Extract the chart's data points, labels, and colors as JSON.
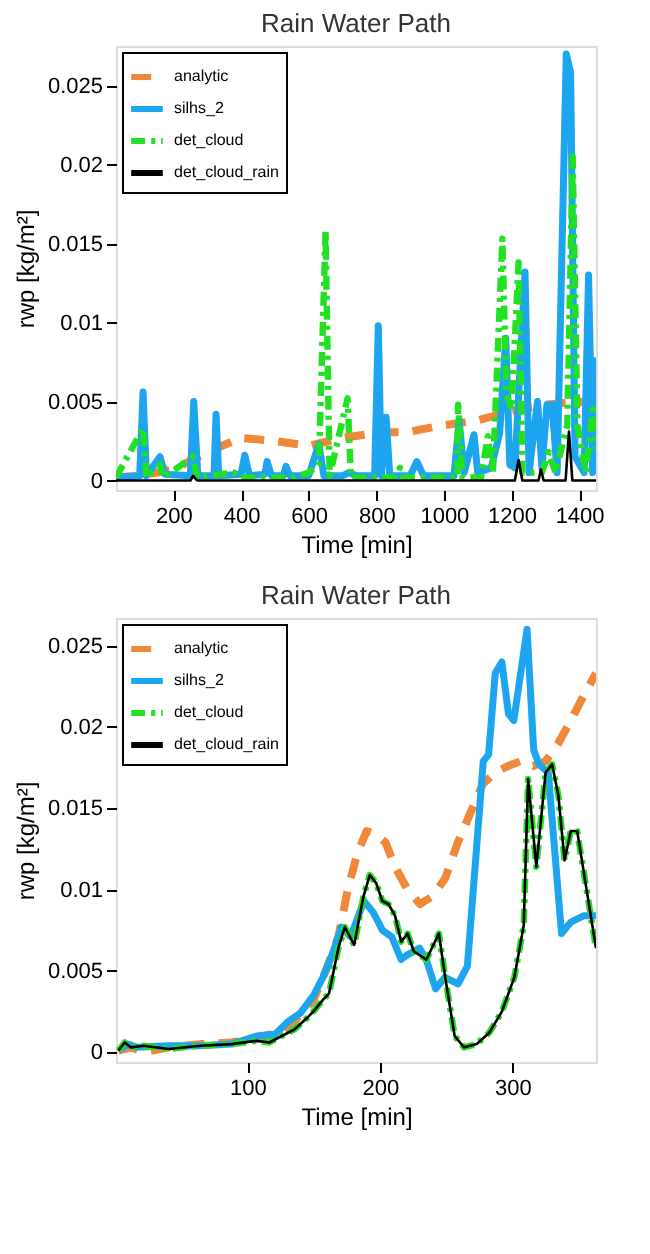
{
  "chart_data": [
    {
      "type": "line",
      "title": "Rain Water Path",
      "xlabel": "Time [min]",
      "ylabel": "rwp [kg/m²]",
      "xlim": [
        30,
        1450
      ],
      "ylim": [
        -0.0006,
        0.0275
      ],
      "xticks": [
        200,
        400,
        600,
        800,
        1000,
        1200,
        1400
      ],
      "yticks": [
        0,
        0.005,
        0.01,
        0.015,
        0.02,
        0.025
      ],
      "grid": false,
      "legend": "top left",
      "series": [
        {
          "name": "analytic",
          "color": "#f0883a",
          "line_style": "dashed",
          "x": [
            30,
            100,
            200,
            300,
            400,
            500,
            600,
            700,
            800,
            900,
            1000,
            1100,
            1200,
            1300,
            1400,
            1450
          ],
          "values": [
            0.0002,
            0.0003,
            0.0007,
            0.0018,
            0.0027,
            0.0025,
            0.0022,
            0.0027,
            0.003,
            0.0031,
            0.0035,
            0.0038,
            0.0044,
            0.0048,
            0.005,
            0.0048
          ]
        },
        {
          "name": "silhs_2",
          "color": "#1ea5ef",
          "line_style": "solid",
          "x": [
            30,
            100,
            110,
            120,
            160,
            175,
            250,
            260,
            272,
            320,
            326,
            334,
            400,
            411,
            425,
            470,
            477,
            490,
            525,
            533,
            545,
            600,
            630,
            645,
            700,
            720,
            740,
            795,
            806,
            815,
            829,
            840,
            900,
            920,
            940,
            1030,
            1045,
            1060,
            1089,
            1100,
            1140,
            1165,
            1183,
            1195,
            1210,
            1240,
            1252,
            1277,
            1290,
            1305,
            1320,
            1335,
            1362,
            1375,
            1388,
            1415,
            1428,
            1440,
            1450
          ],
          "values": [
            0.0002,
            0.0003,
            0.0056,
            0.0003,
            0.0015,
            0.0004,
            0.0003,
            0.005,
            0.0003,
            0.0003,
            0.0042,
            0.0003,
            0.0004,
            0.0016,
            0.0003,
            0.0004,
            0.0012,
            0.0003,
            0.0003,
            0.0009,
            0.0003,
            0.0003,
            0.0023,
            0.0003,
            0.0003,
            0.0005,
            0.0003,
            0.0003,
            0.0098,
            0.0003,
            0.004,
            0.0003,
            0.0003,
            0.0012,
            0.0003,
            0.0003,
            0.0038,
            0.0005,
            0.0029,
            0.0005,
            0.0008,
            0.003,
            0.009,
            0.001,
            0.0008,
            0.0132,
            0.0005,
            0.005,
            0.0008,
            0.0048,
            0.0048,
            0.0005,
            0.027,
            0.0258,
            0.0015,
            0.0005,
            0.013,
            0.0005,
            0.0078
          ]
        },
        {
          "name": "det_cloud",
          "color": "#22e022",
          "line_style": "dashed",
          "x": [
            30,
            110,
            120,
            160,
            170,
            258,
            270,
            380,
            395,
            560,
            600,
            630,
            650,
            662,
            715,
            725,
            850,
            870,
            880,
            1040,
            1042,
            1055,
            1110,
            1130,
            1145,
            1173,
            1185,
            1200,
            1221,
            1232,
            1290,
            1310,
            1330,
            1365,
            1381,
            1395,
            1420,
            1440,
            1450
          ],
          "values": [
            0.0002,
            0.0033,
            0.0002,
            0.001,
            0.0002,
            0.0015,
            0.0002,
            0.0005,
            0.0002,
            0.0002,
            0.0005,
            0.001,
            0.0158,
            0.0003,
            0.0052,
            0.0002,
            0.0002,
            0.0008,
            0.0002,
            0.0002,
            0.0048,
            0.0002,
            0.0002,
            0.0028,
            0.0005,
            0.0153,
            0.0055,
            0.0045,
            0.0138,
            0.0005,
            0.0005,
            0.0018,
            0.0005,
            0.0035,
            0.0205,
            0.0035,
            0.0005,
            0.0045,
            0.002
          ]
        },
        {
          "name": "det_cloud_rain",
          "color": "#000000",
          "line_style": "solid",
          "x": [
            30,
            250,
            258,
            270,
            1210,
            1221,
            1232,
            1280,
            1287,
            1295,
            1360,
            1370,
            1380,
            1450
          ],
          "values": [
            0,
            0,
            0.0003,
            0,
            0,
            0.0013,
            0,
            0,
            0.0007,
            0,
            0,
            0.0031,
            0,
            0
          ]
        }
      ]
    },
    {
      "type": "line",
      "title": "Rain Water Path",
      "xlabel": "Time [min]",
      "ylabel": "rwp [kg/m²]",
      "xlim": [
        1,
        363
      ],
      "ylim": [
        -0.0006,
        0.0267
      ],
      "xticks": [
        100,
        200,
        300
      ],
      "yticks": [
        0,
        0.005,
        0.01,
        0.015,
        0.02,
        0.025
      ],
      "grid": false,
      "legend": "top left",
      "series": [
        {
          "name": "analytic",
          "color": "#f0883a",
          "line_style": "dashed",
          "x": [
            2.8,
            12.3,
            21.8,
            40.8,
            64.5,
            88,
            111.8,
            126,
            135.5,
            149.8,
            159.2,
            168.7,
            175.8,
            182.9,
            190,
            197.2,
            204.3,
            211.4,
            220.9,
            230.3,
            239.8,
            249.3,
            258.8,
            268.2,
            277.7,
            287.2,
            296.7,
            306.2,
            315.6,
            325.1,
            334.6,
            344,
            353.5,
            363
          ],
          "values": [
            0.0001,
            0.0003,
            0,
            0.0003,
            0.0005,
            0.0006,
            0.001,
            0.0012,
            0.0019,
            0.0032,
            0.005,
            0.0071,
            0.01,
            0.0122,
            0.0136,
            0.0134,
            0.0129,
            0.0114,
            0.01,
            0.0091,
            0.0096,
            0.0107,
            0.0129,
            0.0147,
            0.0165,
            0.0172,
            0.0176,
            0.0179,
            0.0176,
            0.0179,
            0.019,
            0.0204,
            0.0219,
            0.0233
          ]
        },
        {
          "name": "silhs_2",
          "color": "#1ea5ef",
          "line_style": "solid",
          "x": [
            2.8,
            9.9,
            17,
            40.8,
            64.5,
            88,
            107,
            121,
            131,
            140,
            150,
            157,
            164,
            171,
            178,
            188,
            195,
            202,
            209,
            216,
            221,
            230,
            235,
            242,
            249,
            259,
            266,
            278,
            282,
            287,
            292,
            297,
            301,
            311,
            316,
            320,
            327,
            337,
            344,
            354,
            363
          ],
          "values": [
            0.0001,
            0.0005,
            0.0003,
            0.0004,
            0.0004,
            0.0005,
            0.001,
            0.0011,
            0.0019,
            0.0024,
            0.0035,
            0.0046,
            0.006,
            0.0077,
            0.0071,
            0.0093,
            0.0086,
            0.0075,
            0.0071,
            0.0057,
            0.006,
            0.0064,
            0.0057,
            0.0039,
            0.0046,
            0.0042,
            0.0053,
            0.0179,
            0.0183,
            0.0233,
            0.024,
            0.0208,
            0.0204,
            0.026,
            0.0186,
            0.0177,
            0.0172,
            0.0073,
            0.008,
            0.0084,
            0.0084
          ]
        },
        {
          "name": "det_cloud",
          "color": "#22e022",
          "line_style": "dashed",
          "x": [
            2.8,
            7.6,
            12.3,
            21.8,
            40.8,
            64.5,
            88,
            107,
            116.6,
            126,
            135.5,
            145,
            149.8,
            156.9,
            161.6,
            168.7,
            173.5,
            180.6,
            187.7,
            192.4,
            197.2,
            201.9,
            206.6,
            211.4,
            216.1,
            220.9,
            225.6,
            235.1,
            244.5,
            249.3,
            256.4,
            263.5,
            273,
            282.5,
            292,
            301.4,
            308.5,
            311.8,
            318,
            325,
            329.9,
            334.6,
            339.3,
            344,
            348.8,
            355.9,
            363
          ],
          "values": [
            0.0001,
            0.0006,
            0.0003,
            0.0004,
            0.0002,
            0.0004,
            0.0005,
            0.0007,
            0.0006,
            0.001,
            0.0014,
            0.0021,
            0.0025,
            0.0032,
            0.0036,
            0.0064,
            0.0077,
            0.0066,
            0.0096,
            0.0109,
            0.0104,
            0.0093,
            0.0091,
            0.0084,
            0.0068,
            0.0073,
            0.0062,
            0.0057,
            0.0073,
            0.0046,
            0.001,
            0.0003,
            0.0005,
            0.0012,
            0.0025,
            0.0046,
            0.0078,
            0.0168,
            0.0114,
            0.0172,
            0.0177,
            0.0158,
            0.0118,
            0.0136,
            0.0136,
            0.01,
            0.0064
          ]
        },
        {
          "name": "det_cloud_rain",
          "color": "#000000",
          "line_style": "solid",
          "x": [
            2.8,
            7.6,
            12.3,
            21.8,
            40.8,
            64.5,
            88,
            107,
            116.6,
            126,
            135.5,
            145,
            149.8,
            156.9,
            161.6,
            168.7,
            173.5,
            180.6,
            187.7,
            192.4,
            197.2,
            201.9,
            206.6,
            211.4,
            216.1,
            220.9,
            225.6,
            235.1,
            244.5,
            249.3,
            256.4,
            263.5,
            273,
            282.5,
            292,
            301.4,
            308.5,
            311.8,
            318,
            325,
            329.9,
            334.6,
            339.3,
            344,
            348.8,
            355.9,
            363
          ],
          "values": [
            0.0001,
            0.0006,
            0.0003,
            0.0004,
            0.0002,
            0.0004,
            0.0005,
            0.0007,
            0.0006,
            0.001,
            0.0014,
            0.0021,
            0.0025,
            0.0032,
            0.0036,
            0.0064,
            0.0077,
            0.0066,
            0.0096,
            0.0109,
            0.0104,
            0.0093,
            0.0091,
            0.0084,
            0.0068,
            0.0073,
            0.0062,
            0.0057,
            0.0073,
            0.0046,
            0.001,
            0.0003,
            0.0005,
            0.0012,
            0.0025,
            0.0046,
            0.0078,
            0.0168,
            0.0114,
            0.0172,
            0.0177,
            0.0158,
            0.0118,
            0.0136,
            0.0136,
            0.01,
            0.0064
          ]
        }
      ]
    }
  ]
}
